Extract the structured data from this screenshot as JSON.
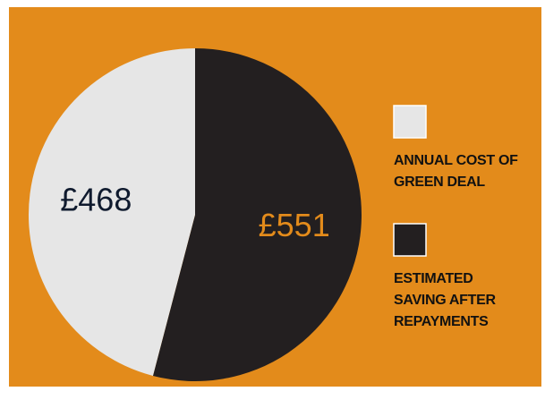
{
  "chart_data": {
    "type": "pie",
    "series": [
      {
        "name": "ANNUAL COST OF GREEN DEAL",
        "color": "#e6e6e6",
        "values": [
          468
        ],
        "value_labels": [
          "£468"
        ],
        "label_color": "#0f1a2e"
      },
      {
        "name": "ESTIMATED SAVING AFTER REPAYMENTS",
        "color": "#231f20",
        "values": [
          551
        ],
        "value_labels": [
          "£551"
        ],
        "label_color": "#e38b1b"
      }
    ],
    "background": "#e38b1b"
  }
}
